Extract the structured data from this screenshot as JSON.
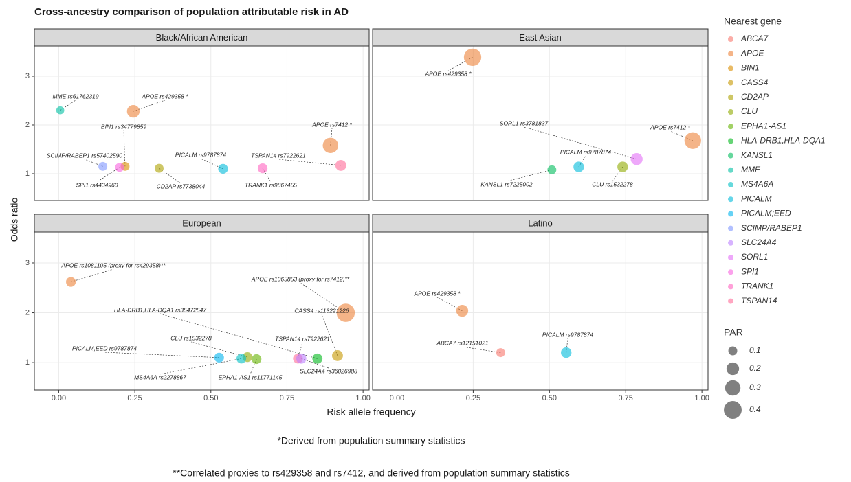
{
  "title": "Cross-ancestry comparison of population attributable risk in AD",
  "x_label": "Risk allele frequency",
  "y_label": "Odds ratio",
  "notes": [
    "*Derived from population summary statistics",
    "**Correlated proxies to rs429358 and rs7412, and derived from population summary statistics"
  ],
  "legend": {
    "title": "Nearest gene",
    "items": [
      {
        "name": "ABCA7",
        "color": "#F8766D"
      },
      {
        "name": "APOE",
        "color": "#EC8239"
      },
      {
        "name": "BIN1",
        "color": "#DB8E00"
      },
      {
        "name": "CASS4",
        "color": "#C79800"
      },
      {
        "name": "CD2AP",
        "color": "#AEA200"
      },
      {
        "name": "CLU",
        "color": "#8FAA00"
      },
      {
        "name": "EPHA1-AS1",
        "color": "#64B200"
      },
      {
        "name": "HLA-DRB1,HLA-DQA1",
        "color": "#00B81B"
      },
      {
        "name": "KANSL1",
        "color": "#00BD5C"
      },
      {
        "name": "MME",
        "color": "#00C0A3"
      },
      {
        "name": "MS4A6A",
        "color": "#00BFC4"
      },
      {
        "name": "PICALM",
        "color": "#00BBDB"
      },
      {
        "name": "PICALM;EED",
        "color": "#00B4EF"
      },
      {
        "name": "SCIMP/RABEP1",
        "color": "#7F96FF"
      },
      {
        "name": "SLC24A4",
        "color": "#BC81FF"
      },
      {
        "name": "SORL1",
        "color": "#E26EF7"
      },
      {
        "name": "SPI1",
        "color": "#F863DF"
      },
      {
        "name": "TRANK1",
        "color": "#FF62BF"
      },
      {
        "name": "TSPAN14",
        "color": "#FF6A98"
      }
    ]
  },
  "size_legend": {
    "title": "PAR",
    "values": [
      0.1,
      0.2,
      0.3,
      0.4
    ]
  },
  "chart_data": [
    {
      "type": "scatter",
      "title": "Black/African American",
      "x": [
        0.005,
        0.245,
        0.218,
        0.145,
        0.2,
        0.33,
        0.54,
        0.67,
        0.893,
        0.927
      ],
      "values": [
        2.3,
        2.28,
        1.15,
        1.15,
        1.13,
        1.11,
        1.1,
        1.11,
        1.58,
        1.17
      ],
      "sizes": [
        0.08,
        0.2,
        0.1,
        0.1,
        0.1,
        0.1,
        0.12,
        0.12,
        0.3,
        0.15
      ],
      "labels": [
        "MME rs61762319",
        "APOE rs429358  *",
        "BIN1 rs34779859",
        "SCIMP/RABEP1 rs57402590",
        "SPI1 rs4434960",
        "CD2AP rs7738044",
        "PICALM rs9787874",
        "TRANK1 rs9867455",
        "APOE rs7412  *",
        "TSPAN14 rs7922621"
      ],
      "colors": [
        "#00C0A3",
        "#EC8239",
        "#DB8E00",
        "#7F96FF",
        "#F863DF",
        "#AEA200",
        "#00BBDB",
        "#FF62BF",
        "#EC8239",
        "#FF6A98"
      ],
      "xlim": [
        -0.08,
        1.02
      ],
      "ylim": [
        0.45,
        3.62
      ],
      "xticks": [
        {
          "value": 0,
          "label": "0.00"
        },
        {
          "value": 0.25,
          "label": "0.25"
        },
        {
          "value": 0.5,
          "label": "0.50"
        },
        {
          "value": 0.75,
          "label": "0.75"
        },
        {
          "value": 1,
          "label": "1.00"
        }
      ],
      "yticks": [
        1,
        2,
        3
      ],
      "grid": true
    },
    {
      "type": "scatter",
      "title": "East Asian",
      "x": [
        0.248,
        0.786,
        0.97,
        0.596,
        0.508,
        0.74
      ],
      "values": [
        3.39,
        1.3,
        1.68,
        1.14,
        1.08,
        1.14
      ],
      "sizes": [
        0.38,
        0.18,
        0.35,
        0.14,
        0.1,
        0.14
      ],
      "labels": [
        "APOE rs429358  *",
        "SORL1 rs3781837",
        "APOE rs7412  *",
        "PICALM rs9787874",
        "KANSL1 rs7225002",
        "CLU rs1532278"
      ],
      "colors": [
        "#EC8239",
        "#E26EF7",
        "#EC8239",
        "#00BBDB",
        "#00BD5C",
        "#8FAA00"
      ],
      "xlim": [
        -0.08,
        1.02
      ],
      "ylim": [
        0.45,
        3.62
      ],
      "xticks": [
        {
          "value": 0,
          "label": "0.00"
        },
        {
          "value": 0.25,
          "label": "0.25"
        },
        {
          "value": 0.5,
          "label": "0.50"
        },
        {
          "value": 0.75,
          "label": "0.75"
        },
        {
          "value": 1,
          "label": "1.00"
        }
      ],
      "yticks": [
        1,
        2,
        3
      ],
      "grid": true
    },
    {
      "type": "scatter",
      "title": "European",
      "x": [
        0.04,
        0.943,
        0.916,
        0.85,
        0.527,
        0.62,
        0.786,
        0.797,
        0.6,
        0.65
      ],
      "values": [
        2.62,
        2.0,
        1.14,
        1.08,
        1.1,
        1.11,
        1.08,
        1.08,
        1.08,
        1.07
      ],
      "sizes": [
        0.12,
        0.42,
        0.15,
        0.13,
        0.12,
        0.12,
        0.12,
        0.13,
        0.12,
        0.12
      ],
      "labels": [
        "APOE rs1081105  (proxy for rs429358)**",
        "APOE rs1065853  (proxy for rs7412)**",
        "CASS4 rs113221226",
        "HLA-DRB1;HLA-DQA1 rs35472547",
        "PICALM,EED rs9787874",
        "CLU rs1532278",
        "TSPAN14 rs7922621",
        "SLC24A4 rs36026988",
        "MS4A6A rs2278867",
        "EPHA1-AS1 rs11771145"
      ],
      "colors": [
        "#EC8239",
        "#EC8239",
        "#C79800",
        "#00B81B",
        "#00B4EF",
        "#8FAA00",
        "#FF6A98",
        "#BC81FF",
        "#00BFC4",
        "#64B200"
      ],
      "xlim": [
        -0.08,
        1.02
      ],
      "ylim": [
        0.45,
        3.62
      ],
      "xticks": [
        {
          "value": 0,
          "label": "0.00"
        },
        {
          "value": 0.25,
          "label": "0.25"
        },
        {
          "value": 0.5,
          "label": "0.50"
        },
        {
          "value": 0.75,
          "label": "0.75"
        },
        {
          "value": 1,
          "label": "1.00"
        }
      ],
      "yticks": [
        1,
        2,
        3
      ],
      "grid": true
    },
    {
      "type": "scatter",
      "title": "Latino",
      "x": [
        0.214,
        0.34,
        0.555
      ],
      "values": [
        2.04,
        1.2,
        1.2
      ],
      "sizes": [
        0.18,
        0.1,
        0.14
      ],
      "labels": [
        "APOE rs429358  *",
        "ABCA7 rs12151021",
        "PICALM rs9787874"
      ],
      "colors": [
        "#EC8239",
        "#F8766D",
        "#00BBDB"
      ],
      "xlim": [
        -0.08,
        1.02
      ],
      "ylim": [
        0.45,
        3.62
      ],
      "xticks": [
        {
          "value": 0,
          "label": "0.00"
        },
        {
          "value": 0.25,
          "label": "0.25"
        },
        {
          "value": 0.5,
          "label": "0.50"
        },
        {
          "value": 0.75,
          "label": "0.75"
        },
        {
          "value": 1,
          "label": "1.00"
        }
      ],
      "yticks": [
        1,
        2,
        3
      ],
      "grid": true
    }
  ]
}
